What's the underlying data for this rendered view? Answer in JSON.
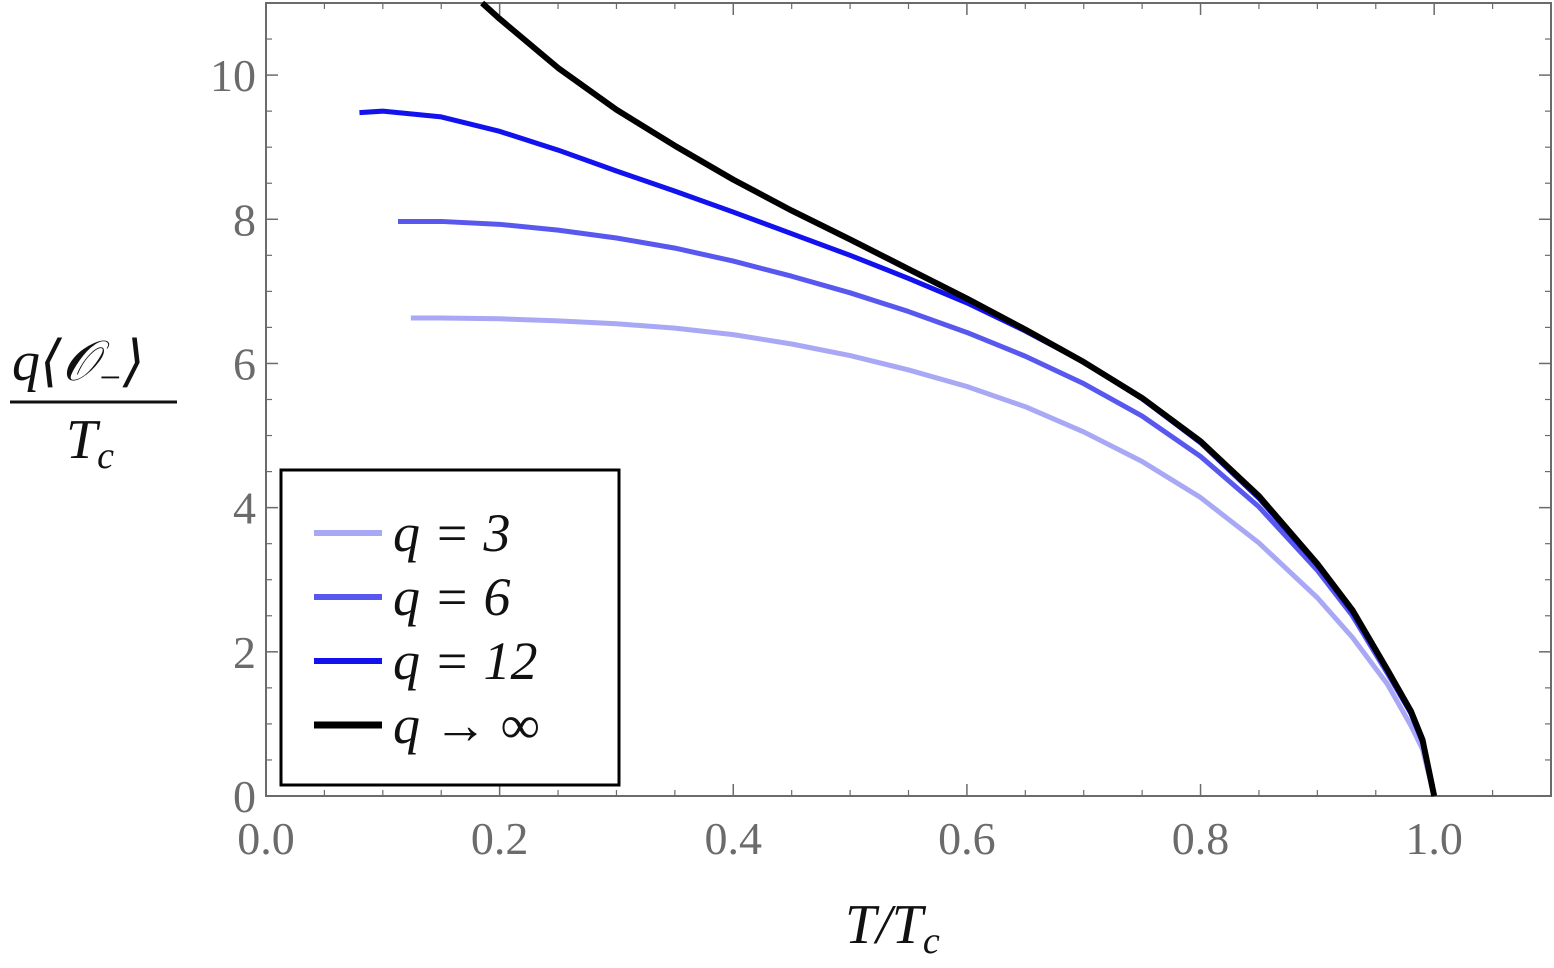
{
  "chart_data": {
    "type": "line",
    "xlabel": "T/T",
    "xlabel_sub": "c",
    "ylabel_num": "q⟨𝒪",
    "ylabel_num_sub": "−",
    "ylabel_num_close": "⟩",
    "ylabel_den": "T",
    "ylabel_den_sub": "c",
    "xlim": [
      0.0,
      1.1
    ],
    "ylim": [
      0,
      11
    ],
    "x_major_ticks": [
      0.0,
      0.2,
      0.4,
      0.6,
      0.8,
      1.0
    ],
    "x_tick_labels": [
      "0.0",
      "0.2",
      "0.4",
      "0.6",
      "0.8",
      "1.0"
    ],
    "y_major_ticks": [
      0,
      2,
      4,
      6,
      8,
      10
    ],
    "y_tick_labels": [
      "0",
      "2",
      "4",
      "6",
      "8",
      "10"
    ],
    "grid": false,
    "legend_position": "bottom-left",
    "series": [
      {
        "name": "q = 3",
        "color": "#a8a8f5",
        "points": [
          [
            0.124,
            6.63
          ],
          [
            0.15,
            6.63
          ],
          [
            0.2,
            6.62
          ],
          [
            0.25,
            6.59
          ],
          [
            0.3,
            6.55
          ],
          [
            0.35,
            6.49
          ],
          [
            0.4,
            6.4
          ],
          [
            0.45,
            6.27
          ],
          [
            0.5,
            6.11
          ],
          [
            0.55,
            5.91
          ],
          [
            0.6,
            5.68
          ],
          [
            0.65,
            5.4
          ],
          [
            0.7,
            5.05
          ],
          [
            0.75,
            4.64
          ],
          [
            0.8,
            4.14
          ],
          [
            0.85,
            3.51
          ],
          [
            0.9,
            2.75
          ],
          [
            0.93,
            2.2
          ],
          [
            0.96,
            1.55
          ],
          [
            0.98,
            0.98
          ],
          [
            0.99,
            0.65
          ],
          [
            1.0,
            0.0
          ]
        ]
      },
      {
        "name": "q = 6",
        "color": "#5858ee",
        "points": [
          [
            0.113,
            7.97
          ],
          [
            0.15,
            7.97
          ],
          [
            0.2,
            7.93
          ],
          [
            0.25,
            7.85
          ],
          [
            0.3,
            7.74
          ],
          [
            0.35,
            7.6
          ],
          [
            0.4,
            7.42
          ],
          [
            0.45,
            7.21
          ],
          [
            0.5,
            6.98
          ],
          [
            0.55,
            6.72
          ],
          [
            0.6,
            6.43
          ],
          [
            0.65,
            6.1
          ],
          [
            0.7,
            5.72
          ],
          [
            0.75,
            5.27
          ],
          [
            0.8,
            4.71
          ],
          [
            0.85,
            4.01
          ],
          [
            0.9,
            3.13
          ],
          [
            0.93,
            2.5
          ],
          [
            0.96,
            1.7
          ],
          [
            0.98,
            1.15
          ],
          [
            0.99,
            0.75
          ],
          [
            1.0,
            0.0
          ]
        ]
      },
      {
        "name": "q = 12",
        "color": "#1212ee",
        "points": [
          [
            0.08,
            9.48
          ],
          [
            0.1,
            9.5
          ],
          [
            0.15,
            9.42
          ],
          [
            0.2,
            9.22
          ],
          [
            0.25,
            8.96
          ],
          [
            0.3,
            8.67
          ],
          [
            0.35,
            8.39
          ],
          [
            0.4,
            8.1
          ],
          [
            0.45,
            7.8
          ],
          [
            0.5,
            7.5
          ],
          [
            0.55,
            7.18
          ],
          [
            0.6,
            6.84
          ],
          [
            0.65,
            6.45
          ],
          [
            0.7,
            6.02
          ],
          [
            0.75,
            5.51
          ],
          [
            0.8,
            4.9
          ],
          [
            0.85,
            4.13
          ],
          [
            0.9,
            3.2
          ],
          [
            0.93,
            2.55
          ],
          [
            0.96,
            1.73
          ],
          [
            0.98,
            1.15
          ],
          [
            0.99,
            0.75
          ],
          [
            1.0,
            0.0
          ]
        ]
      },
      {
        "name": "q → ∞",
        "color": "#000000",
        "points": [
          [
            0.185,
            11.0
          ],
          [
            0.2,
            10.78
          ],
          [
            0.25,
            10.1
          ],
          [
            0.3,
            9.52
          ],
          [
            0.35,
            9.02
          ],
          [
            0.4,
            8.55
          ],
          [
            0.45,
            8.12
          ],
          [
            0.5,
            7.72
          ],
          [
            0.55,
            7.31
          ],
          [
            0.6,
            6.9
          ],
          [
            0.65,
            6.47
          ],
          [
            0.7,
            6.02
          ],
          [
            0.75,
            5.52
          ],
          [
            0.8,
            4.92
          ],
          [
            0.85,
            4.16
          ],
          [
            0.9,
            3.22
          ],
          [
            0.93,
            2.58
          ],
          [
            0.96,
            1.75
          ],
          [
            0.98,
            1.18
          ],
          [
            0.99,
            0.78
          ],
          [
            1.0,
            0.0
          ]
        ]
      }
    ]
  }
}
